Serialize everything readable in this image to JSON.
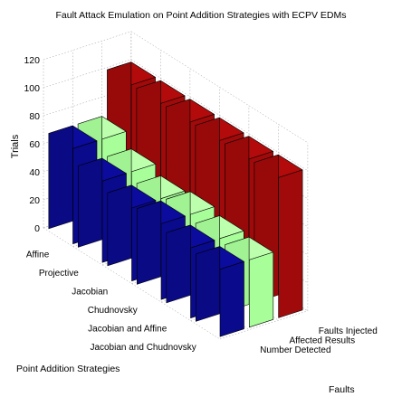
{
  "chart_data": {
    "type": "bar",
    "chart_style": "3d-grouped-bar",
    "title": "Fault Attack Emulation on Point Addition Strategies with ECPV EDMs",
    "ylabel": "Trials",
    "xlabel": "Point Addition Strategies",
    "zlabel": "Faults",
    "ylim": [
      0,
      120
    ],
    "yticks": [
      0,
      20,
      40,
      60,
      80,
      100,
      120
    ],
    "grid": true,
    "categories": [
      "Affine",
      "Projective",
      "Jacobian",
      "Chudnovsky",
      "Jacobian and Affine",
      "Jacobian and Chudnovsky"
    ],
    "series": [
      {
        "name": "Number Detected",
        "color": "#0a0a8c",
        "values": [
          68,
          58,
          52,
          54,
          50,
          48
        ]
      },
      {
        "name": "Affected Results",
        "color": "#a8ff9a",
        "values": [
          68,
          58,
          52,
          54,
          50,
          48
        ]
      },
      {
        "name": "Faults Injected",
        "color": "#a00a0a",
        "values": [
          100,
          100,
          100,
          100,
          100,
          100
        ]
      }
    ]
  }
}
